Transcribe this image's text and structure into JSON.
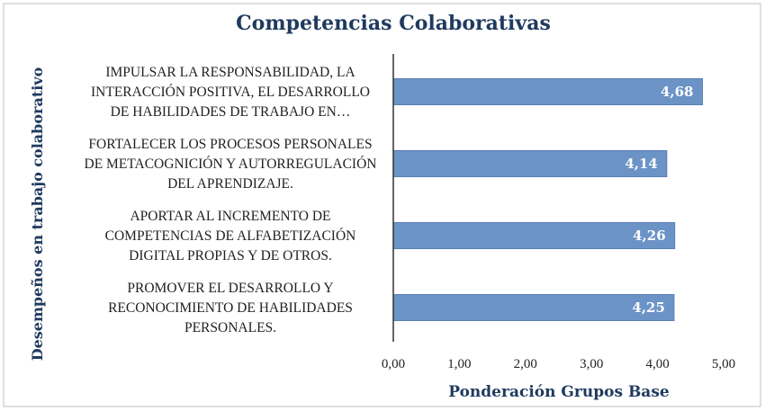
{
  "chart_data": {
    "type": "bar",
    "orientation": "horizontal",
    "title": "Competencias Colaborativas",
    "xlabel": "Ponderación  Grupos Base",
    "ylabel": "Desempeños en trabajo colaborativo",
    "categories": [
      [
        "IMPULSAR LA RESPONSABILIDAD, LA",
        "INTERACCIÓN POSITIVA, EL DESARROLLO",
        "DE HABILIDADES DE TRABAJO EN…"
      ],
      [
        "FORTALECER LOS PROCESOS PERSONALES",
        "DE METACOGNICIÓN Y AUTORREGULACIÓN",
        "DEL APRENDIZAJE."
      ],
      [
        "APORTAR AL INCREMENTO DE",
        "COMPETENCIAS DE ALFABETIZACIÓN",
        "DIGITAL PROPIAS Y DE OTROS."
      ],
      [
        "PROMOVER EL DESARROLLO Y",
        "RECONOCIMIENTO DE HABILIDADES",
        "PERSONALES."
      ]
    ],
    "values": [
      4.68,
      4.14,
      4.26,
      4.25
    ],
    "data_labels": [
      "4,68",
      "4,14",
      "4,26",
      "4,25"
    ],
    "xlim": [
      0,
      5
    ],
    "x_ticks": [
      0,
      1,
      2,
      3,
      4,
      5
    ],
    "x_tick_labels": [
      "0,00",
      "1,00",
      "2,00",
      "3,00",
      "4,00",
      "5,00"
    ],
    "grid": false,
    "legend": "none",
    "colors": {
      "bar": "#6b93c6",
      "bar_edge": "#5a80b3",
      "axis": "#333333",
      "border": "#bfbfbf",
      "title": "#1f3a5f"
    }
  }
}
